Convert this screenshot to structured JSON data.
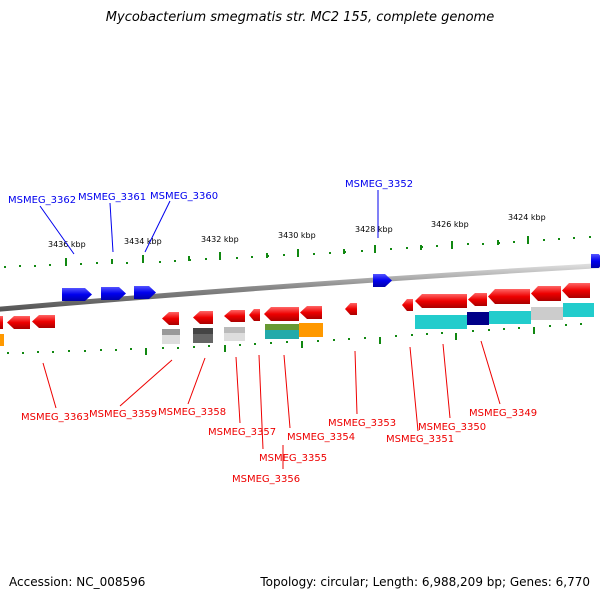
{
  "title": "Mycobacterium smegmatis str. MC2 155, complete genome",
  "accession": "Accession: NC_008596",
  "topology": "Topology: circular; Length: 6,988,209 bp; Genes: 6,770",
  "colors": {
    "forward_gene": "#0000ee",
    "reverse_gene": "#ee0000",
    "backbone": "#999999",
    "tick": "#118811",
    "cyan": "#22cccc",
    "navy": "#000088",
    "gray": "#bbbbbb",
    "dark_gray": "#666666",
    "olive": "#669933",
    "orange": "#ff9900"
  },
  "scale_labels": [
    "3436 kbp",
    "3434 kbp",
    "3432 kbp",
    "3430 kbp",
    "3428 kbp",
    "3426 kbp",
    "3424 kbp"
  ],
  "forward_labels": [
    "MSMEG_3362",
    "MSMEG_3361",
    "MSMEG_3360",
    "MSMEG_3352"
  ],
  "reverse_labels": [
    "MSMEG_3363",
    "MSMEG_3359",
    "MSMEG_3358",
    "MSMEG_3357",
    "MSMEG_3354",
    "MSMEG_3355",
    "MSMEG_3356",
    "MSMEG_3353",
    "MSMEG_3351",
    "MSMEG_3350",
    "MSMEG_3349"
  ]
}
